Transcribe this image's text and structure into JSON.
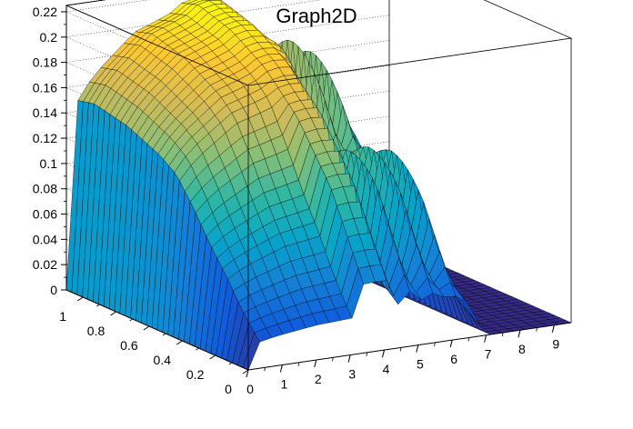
{
  "chart_data": {
    "type": "surface",
    "title": "Graph2D",
    "xlabel": "",
    "ylabel": "",
    "zlabel": "",
    "xlim": [
      0,
      9.5
    ],
    "ylim": [
      0,
      1.1
    ],
    "zlim": [
      0,
      0.225
    ],
    "x_ticks": [
      "0",
      "1",
      "2",
      "3",
      "4",
      "5",
      "6",
      "7",
      "8",
      "9"
    ],
    "y_ticks": [
      "0",
      "0.2",
      "0.4",
      "0.6",
      "0.8",
      "1"
    ],
    "z_ticks": [
      "0",
      "0.02",
      "0.04",
      "0.06",
      "0.08",
      "0.1",
      "0.12",
      "0.14",
      "0.16",
      "0.18",
      "0.2",
      "0.22"
    ],
    "grid": true,
    "colormap": [
      "#352a87",
      "#0f5cdd",
      "#1481d6",
      "#06a4ca",
      "#2eb7a4",
      "#87bf77",
      "#d1bb59",
      "#fec832",
      "#f9fb0e"
    ],
    "wire_color": "#000000",
    "nx": 28,
    "ny": 34,
    "profile_x": [
      0,
      0.3,
      0.8,
      1.2,
      1.6,
      2.0,
      2.5,
      3.0,
      3.5,
      4.0,
      4.6,
      5.2,
      5.8,
      6.3,
      7.0,
      9.5
    ],
    "profile_peak": [
      0,
      0.15,
      0.17,
      0.18,
      0.19,
      0.2,
      0.205,
      0.21,
      0.22,
      0.22,
      0.21,
      0.205,
      0.19,
      0.18,
      0,
      0
    ],
    "y_profile": [
      [
        0,
        0.25
      ],
      [
        0.2,
        0.55
      ],
      [
        0.4,
        0.75
      ],
      [
        0.6,
        0.88
      ],
      [
        0.8,
        0.96
      ],
      [
        1.0,
        1.0
      ],
      [
        1.1,
        0.98
      ]
    ]
  }
}
